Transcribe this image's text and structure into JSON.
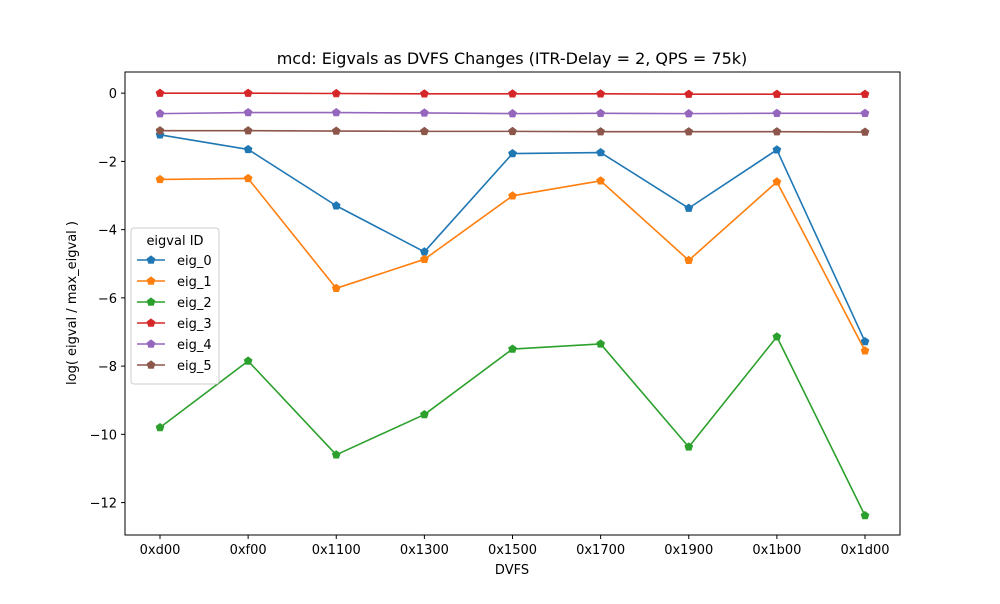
{
  "chart_data": {
    "type": "line",
    "title": "mcd: Eigvals as DVFS Changes (ITR-Delay = 2, QPS = 75k)",
    "xlabel": "DVFS",
    "ylabel": "log( eigval / max_eigval )",
    "categories": [
      "0xd00",
      "0xf00",
      "0x1100",
      "0x1300",
      "0x1500",
      "0x1700",
      "0x1900",
      "0x1b00",
      "0x1d00"
    ],
    "ylim": [
      -12.95,
      0.62
    ],
    "yticks": [
      0,
      -2,
      -4,
      -6,
      -8,
      -10,
      -12
    ],
    "ytick_labels": [
      "0",
      "−2",
      "−4",
      "−6",
      "−8",
      "−10",
      "−12"
    ],
    "grid": false,
    "marker": "pentagon",
    "legend": {
      "title": "eigval ID",
      "placement": "center-left"
    },
    "series": [
      {
        "name": "eig_0",
        "color": "#1f77b4",
        "values": [
          -1.22,
          -1.65,
          -3.3,
          -4.65,
          -1.77,
          -1.74,
          -3.37,
          -1.66,
          -7.28
        ]
      },
      {
        "name": "eig_1",
        "color": "#ff7f0e",
        "values": [
          -2.53,
          -2.5,
          -5.72,
          -4.87,
          -3.01,
          -2.57,
          -4.9,
          -2.6,
          -7.55
        ]
      },
      {
        "name": "eig_2",
        "color": "#2ca02c",
        "values": [
          -9.8,
          -7.85,
          -10.6,
          -9.42,
          -7.5,
          -7.35,
          -10.37,
          -7.14,
          -12.38
        ]
      },
      {
        "name": "eig_3",
        "color": "#d62728",
        "values": [
          0.0,
          0.0,
          -0.01,
          -0.02,
          -0.02,
          -0.02,
          -0.03,
          -0.03,
          -0.03
        ]
      },
      {
        "name": "eig_4",
        "color": "#9467bd",
        "values": [
          -0.6,
          -0.57,
          -0.57,
          -0.58,
          -0.6,
          -0.59,
          -0.6,
          -0.59,
          -0.59
        ]
      },
      {
        "name": "eig_5",
        "color": "#8c564b",
        "values": [
          -1.1,
          -1.1,
          -1.11,
          -1.12,
          -1.12,
          -1.13,
          -1.13,
          -1.13,
          -1.14
        ]
      }
    ]
  }
}
